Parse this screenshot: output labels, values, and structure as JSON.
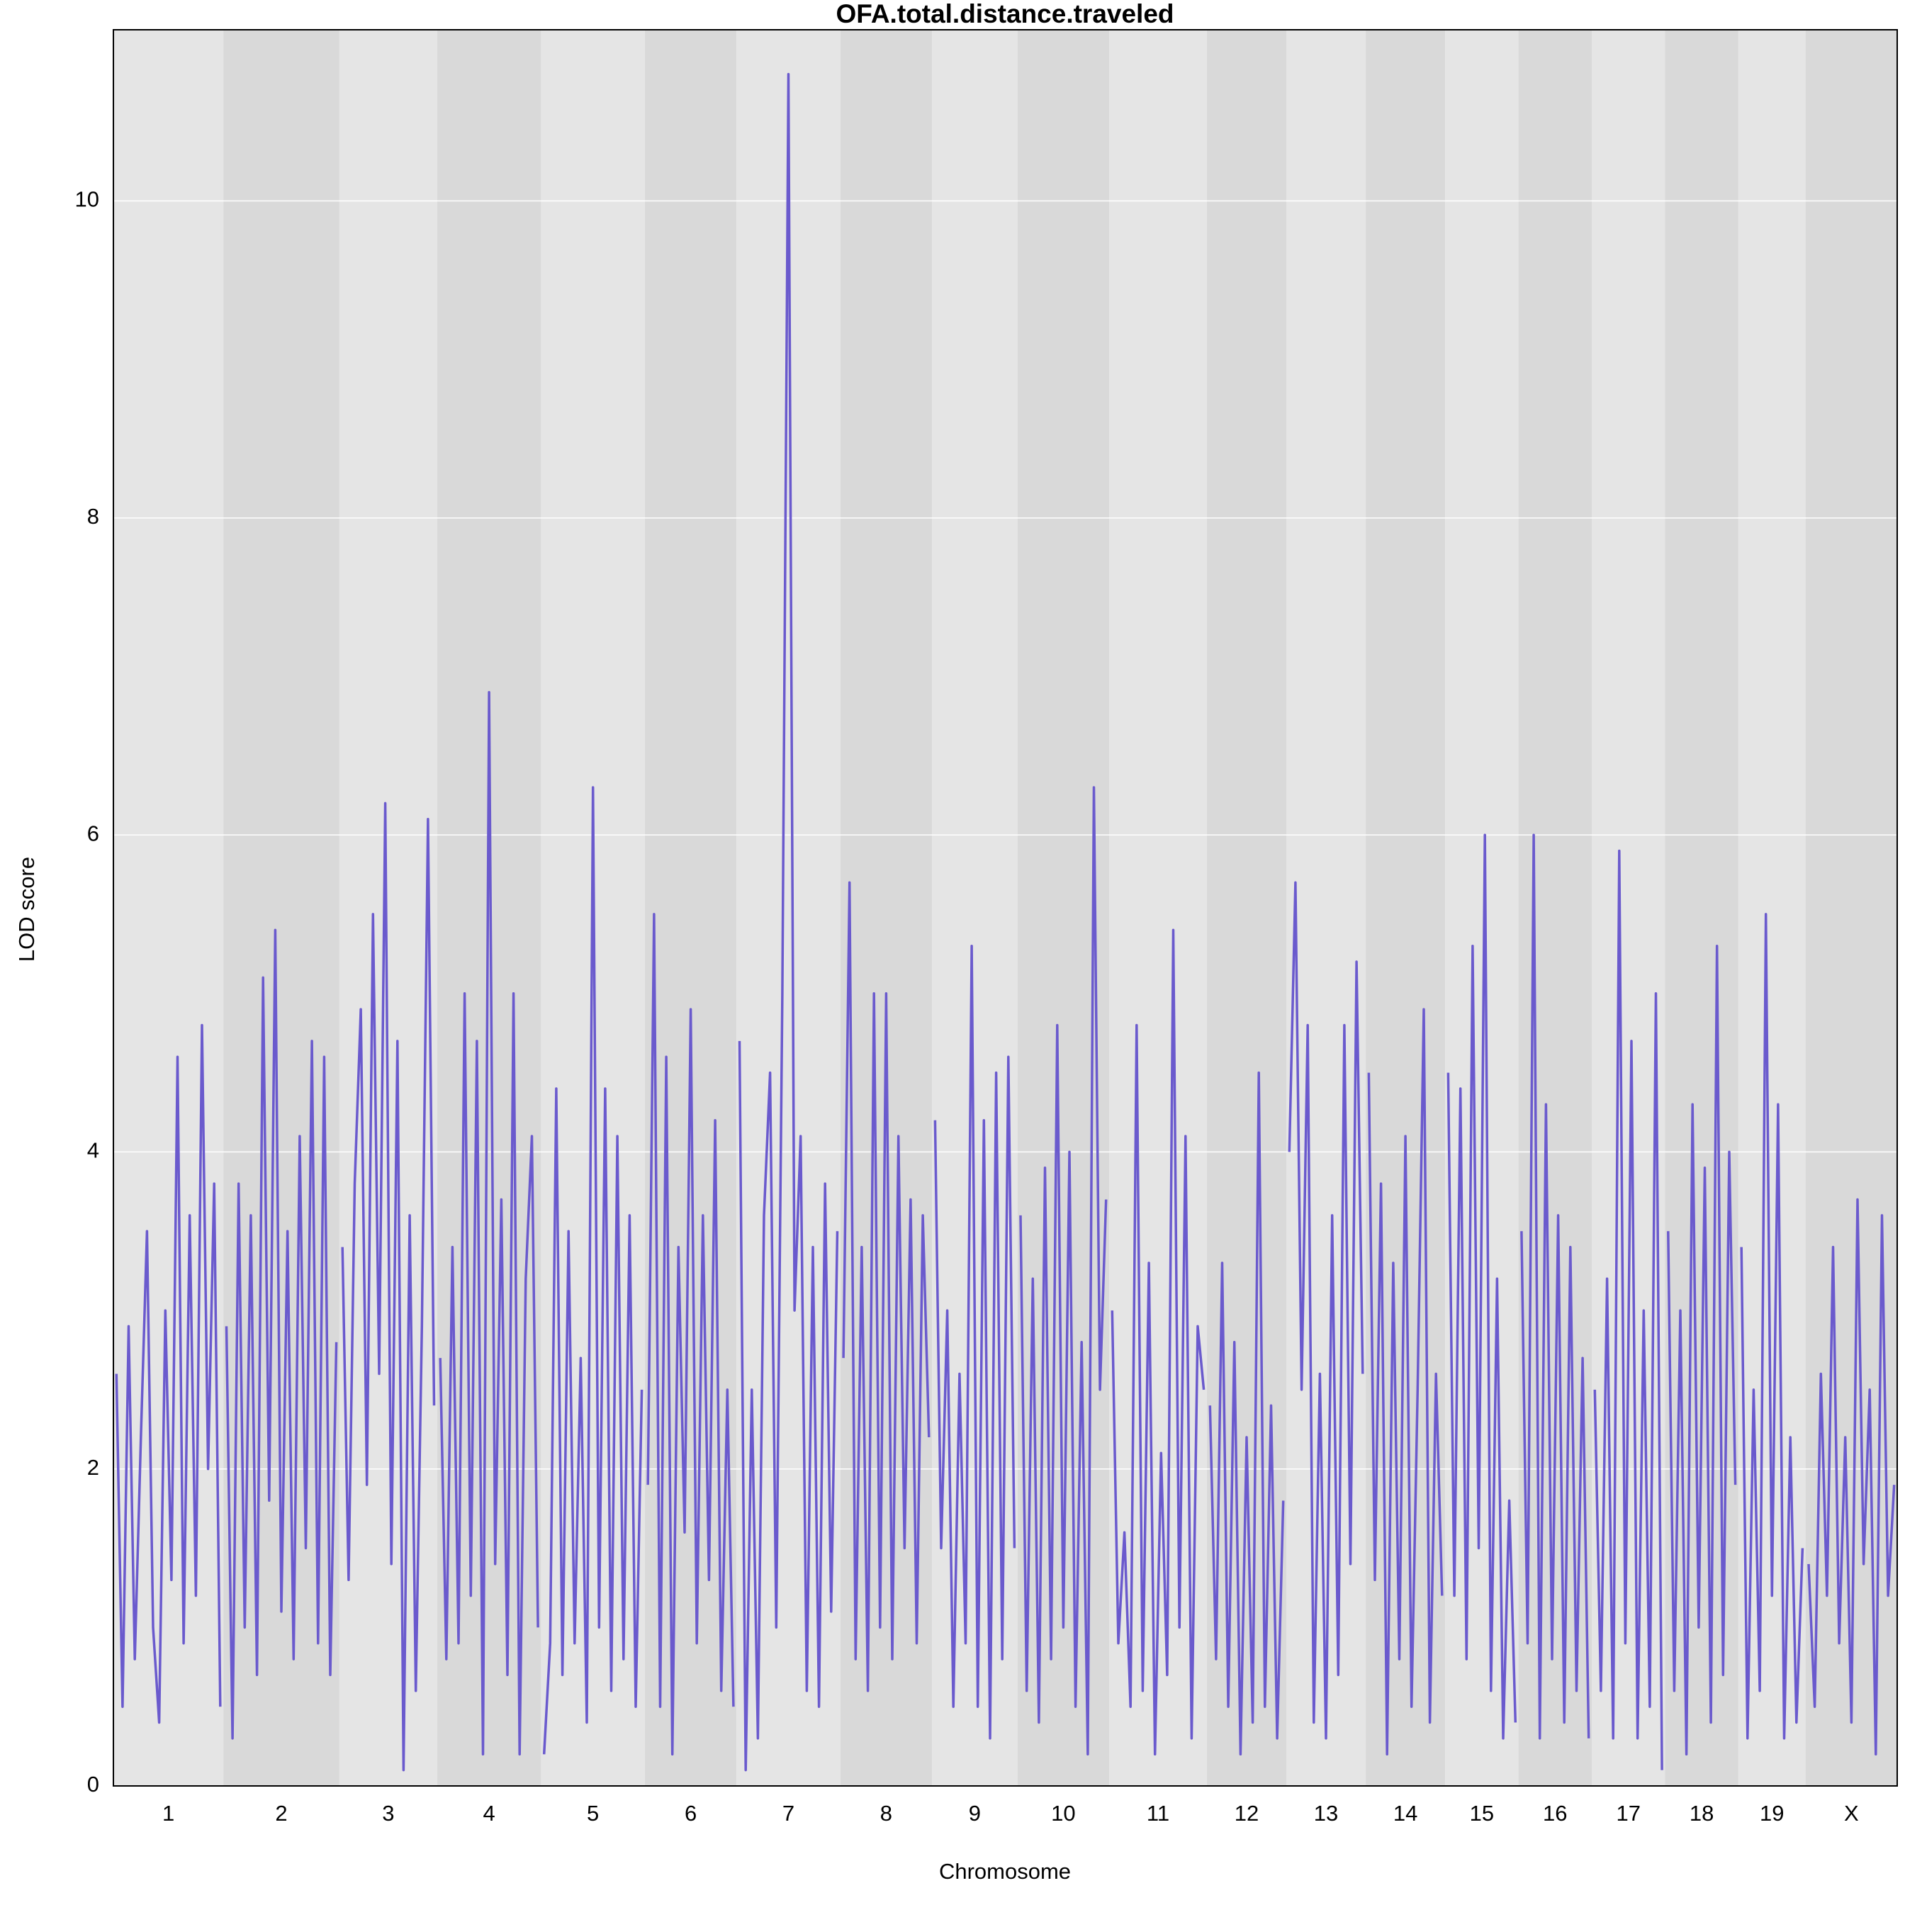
{
  "chart_data": {
    "type": "genome-scan",
    "title": "OFA.total.distance.traveled",
    "x_label": "Chromosome",
    "y_label": "LOD score",
    "ylim": [
      0,
      11.08
    ],
    "yticks": [
      0,
      2,
      4,
      6,
      8,
      10
    ],
    "grid": true,
    "color": "#6a5acd",
    "band_colors": [
      "#e5e5e5",
      "#d9d9d9"
    ],
    "chromosomes": [
      {
        "name": "1",
        "values": [
          2.6,
          0.5,
          2.9,
          0.8,
          2.2,
          3.5,
          1.0,
          0.4,
          3.0,
          1.3,
          4.6,
          0.9,
          3.6,
          1.2,
          4.8,
          2.0,
          3.8,
          0.5
        ]
      },
      {
        "name": "2",
        "values": [
          2.9,
          0.3,
          3.8,
          1.0,
          3.6,
          0.7,
          5.1,
          1.8,
          5.4,
          1.1,
          3.5,
          0.8,
          4.1,
          1.5,
          4.7,
          0.9,
          4.6,
          0.7,
          2.8
        ]
      },
      {
        "name": "3",
        "values": [
          3.4,
          1.3,
          3.8,
          4.9,
          1.9,
          5.5,
          2.6,
          6.2,
          1.4,
          4.7,
          0.1,
          3.6,
          0.6,
          2.9,
          6.1,
          2.4
        ]
      },
      {
        "name": "4",
        "values": [
          2.7,
          0.8,
          3.4,
          0.9,
          5.0,
          1.2,
          4.7,
          0.2,
          6.9,
          1.4,
          3.7,
          0.7,
          5.0,
          0.2,
          3.2,
          4.1,
          1.0
        ]
      },
      {
        "name": "5",
        "values": [
          0.2,
          0.9,
          4.4,
          0.7,
          3.5,
          0.9,
          2.7,
          0.4,
          6.3,
          1.0,
          4.4,
          0.6,
          4.1,
          0.8,
          3.6,
          0.5,
          2.5
        ]
      },
      {
        "name": "6",
        "values": [
          1.9,
          5.5,
          0.5,
          4.6,
          0.2,
          3.4,
          1.6,
          4.9,
          0.9,
          3.6,
          1.3,
          4.2,
          0.6,
          2.5,
          0.5
        ]
      },
      {
        "name": "7",
        "values": [
          4.7,
          0.1,
          2.5,
          0.3,
          3.6,
          4.5,
          1.0,
          5.0,
          10.8,
          3.0,
          4.1,
          0.6,
          3.4,
          0.5,
          3.8,
          1.1,
          3.5
        ]
      },
      {
        "name": "8",
        "values": [
          2.7,
          5.7,
          0.8,
          3.4,
          0.6,
          5.0,
          1.0,
          5.0,
          0.8,
          4.1,
          1.5,
          3.7,
          0.9,
          3.6,
          2.2
        ]
      },
      {
        "name": "9",
        "values": [
          4.2,
          1.5,
          3.0,
          0.5,
          2.6,
          0.9,
          5.3,
          0.5,
          4.2,
          0.3,
          4.5,
          0.8,
          4.6,
          1.5
        ]
      },
      {
        "name": "10",
        "values": [
          3.6,
          0.6,
          3.2,
          0.4,
          3.9,
          0.8,
          4.8,
          1.0,
          4.0,
          0.5,
          2.8,
          0.2,
          6.3,
          2.5,
          3.7
        ]
      },
      {
        "name": "11",
        "values": [
          3.0,
          0.9,
          1.6,
          0.5,
          4.8,
          0.6,
          3.3,
          0.2,
          2.1,
          0.7,
          5.4,
          1.0,
          4.1,
          0.3,
          2.9,
          2.5
        ]
      },
      {
        "name": "12",
        "values": [
          2.4,
          0.8,
          3.3,
          0.5,
          2.8,
          0.2,
          2.2,
          0.4,
          4.5,
          0.5,
          2.4,
          0.3,
          1.8
        ]
      },
      {
        "name": "13",
        "values": [
          4.0,
          5.7,
          2.5,
          4.8,
          0.4,
          2.6,
          0.3,
          3.6,
          0.7,
          4.8,
          1.4,
          5.2,
          2.6
        ]
      },
      {
        "name": "14",
        "values": [
          4.5,
          1.3,
          3.8,
          0.2,
          3.3,
          0.8,
          4.1,
          0.5,
          2.5,
          4.9,
          0.4,
          2.6,
          1.2
        ]
      },
      {
        "name": "15",
        "values": [
          4.5,
          1.2,
          4.4,
          0.8,
          5.3,
          1.5,
          6.0,
          0.6,
          3.2,
          0.3,
          1.8,
          0.4
        ]
      },
      {
        "name": "16",
        "values": [
          3.5,
          0.9,
          6.0,
          0.3,
          4.3,
          0.8,
          3.6,
          0.4,
          3.4,
          0.6,
          2.7,
          0.3
        ]
      },
      {
        "name": "17",
        "values": [
          2.5,
          0.6,
          3.2,
          0.3,
          5.9,
          0.9,
          4.7,
          0.3,
          3.0,
          0.5,
          5.0,
          0.1
        ]
      },
      {
        "name": "18",
        "values": [
          3.5,
          0.6,
          3.0,
          0.2,
          4.3,
          1.0,
          3.9,
          0.4,
          5.3,
          0.7,
          4.0,
          1.9
        ]
      },
      {
        "name": "19",
        "values": [
          3.4,
          0.3,
          2.5,
          0.6,
          5.5,
          1.2,
          4.3,
          0.3,
          2.2,
          0.4,
          1.5
        ]
      },
      {
        "name": "X",
        "values": [
          1.4,
          0.5,
          2.6,
          1.2,
          3.4,
          0.9,
          2.2,
          0.4,
          3.7,
          1.4,
          2.5,
          0.2,
          3.6,
          1.2,
          1.9
        ]
      }
    ]
  }
}
